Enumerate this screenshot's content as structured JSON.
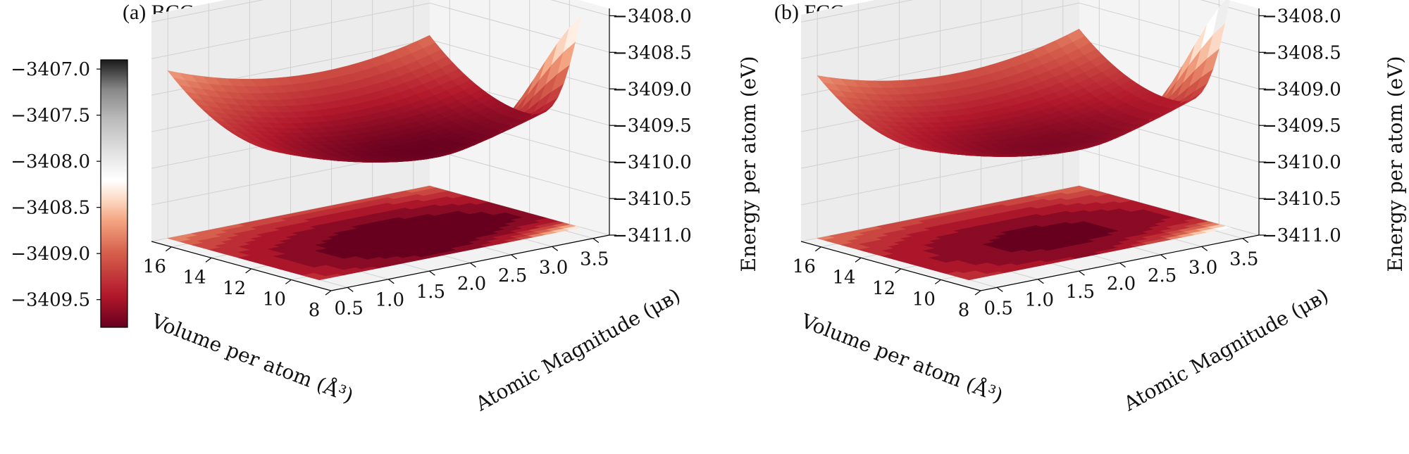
{
  "chart_data": {
    "type": "surface3d",
    "colormap": "RdGy",
    "colorbar": {
      "ticks": [
        "−3407.0",
        "−3407.5",
        "−3408.0",
        "−3408.5",
        "−3409.0",
        "−3409.5"
      ],
      "tick_values": [
        -3407.0,
        -3407.5,
        -3408.0,
        -3408.5,
        -3409.0,
        -3409.5
      ],
      "vmin": -3409.8,
      "vmax": -3406.9
    },
    "panels": [
      {
        "title": "(a) BCC-Fe",
        "xlabel": "Volume per atom (Å³)",
        "ylabel": "Atomic Magnitude (μʙ)",
        "zlabel": "Energy per atom (eV)",
        "xticks": [
          "16",
          "14",
          "12",
          "10",
          "8"
        ],
        "yticks": [
          "3.5",
          "3.0",
          "2.5",
          "2.0",
          "1.5",
          "1.0",
          "0.5"
        ],
        "zticks": [
          "3408.0",
          "3408.5",
          "3409.0",
          "3409.5",
          "3410.0",
          "3410.5",
          "3411.0"
        ],
        "x_range": [
          8,
          17
        ],
        "y_range": [
          0.3,
          3.7
        ],
        "z_range": [
          -3411.0,
          -3407.9
        ],
        "energy_min": -3409.8,
        "energy_max": -3407.2,
        "min_at": {
          "volume": 11.5,
          "moment": 2.3
        }
      },
      {
        "title": "(b) FCC-Fe",
        "xlabel": "Volume per atom (Å³)",
        "ylabel": "Atomic Magnitude (μʙ)",
        "zlabel": "Energy per atom (eV)",
        "xticks": [
          "16",
          "14",
          "12",
          "10",
          "8"
        ],
        "yticks": [
          "3.5",
          "3.0",
          "2.5",
          "2.0",
          "1.5",
          "1.0",
          "0.5"
        ],
        "zticks": [
          "3408.0",
          "3408.5",
          "3409.0",
          "3409.5",
          "3410.0",
          "3410.5",
          "3411.0"
        ],
        "x_range": [
          8,
          17
        ],
        "y_range": [
          0.3,
          3.7
        ],
        "z_range": [
          -3411.0,
          -3407.9
        ],
        "energy_min": -3409.7,
        "energy_max": -3406.9,
        "min_at": {
          "volume": 11.8,
          "moment": 2.1
        }
      }
    ]
  }
}
